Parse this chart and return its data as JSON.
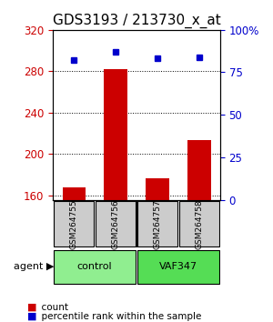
{
  "title": "GDS3193 / 213730_x_at",
  "samples": [
    "GSM264755",
    "GSM264756",
    "GSM264757",
    "GSM264758"
  ],
  "counts": [
    168,
    282,
    176,
    213
  ],
  "percentile_ranks": [
    82,
    87,
    83,
    84
  ],
  "ylim_left": [
    155,
    320
  ],
  "yticks_left": [
    160,
    200,
    240,
    280,
    320
  ],
  "ylim_right": [
    0,
    100
  ],
  "yticks_right": [
    0,
    25,
    50,
    75,
    100
  ],
  "bar_color": "#cc0000",
  "dot_color": "#0000cc",
  "bar_bottom": 155,
  "groups": [
    {
      "label": "control",
      "indices": [
        0,
        1
      ],
      "color": "#90ee90"
    },
    {
      "label": "VAF347",
      "indices": [
        2,
        3
      ],
      "color": "#55dd55"
    }
  ],
  "agent_label": "agent",
  "legend_count_label": "count",
  "legend_pct_label": "percentile rank within the sample",
  "left_tick_color": "#cc0000",
  "right_tick_color": "#0000cc",
  "grid_color": "#000000",
  "sample_box_color": "#cccccc",
  "title_fontsize": 11,
  "axis_fontsize": 9,
  "tick_fontsize": 8.5
}
